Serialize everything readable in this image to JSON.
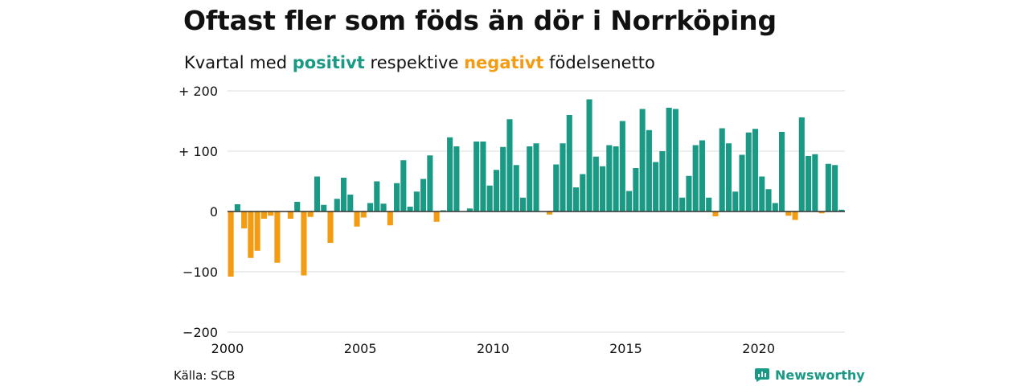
{
  "header": {
    "title": "Oftast fler som föds än dör i Norrköping",
    "subtitle_prefix": "Kvartal med",
    "subtitle_positive": "positivt",
    "subtitle_middle": "respektive",
    "subtitle_negative": "negativt",
    "subtitle_suffix": "födelsenetto"
  },
  "footer": {
    "source": "Källa: SCB",
    "brand": "Newsworthy"
  },
  "colors": {
    "positive": "#1a9985",
    "negative": "#f39c12",
    "grid": "#dddddd",
    "zero_line": "#333333"
  },
  "chart_data": {
    "type": "bar",
    "title": "Oftast fler som föds än dör i Norrköping",
    "subtitle": "Kvartal med positivt respektive negativt födelsenetto",
    "x_start": 2000.0,
    "x_step": 0.25,
    "xlim": [
      2000,
      2023.25
    ],
    "ylim": [
      -200,
      200
    ],
    "x_ticks": [
      2000,
      2005,
      2010,
      2015,
      2020
    ],
    "y_ticks": [
      200,
      100,
      0,
      -100,
      -200
    ],
    "y_tick_labels": [
      "+ 200",
      "+ 100",
      "0",
      "−100",
      "−200"
    ],
    "grid": true,
    "values": [
      -108,
      12,
      -28,
      -77,
      -65,
      -12,
      -7,
      -85,
      0,
      -12,
      16,
      -106,
      -9,
      58,
      11,
      -52,
      21,
      56,
      28,
      -25,
      -10,
      14,
      50,
      13,
      -23,
      47,
      85,
      8,
      33,
      54,
      93,
      -17,
      2,
      123,
      108,
      0,
      5,
      116,
      116,
      43,
      69,
      107,
      153,
      77,
      23,
      108,
      113,
      0,
      -5,
      78,
      113,
      160,
      40,
      62,
      186,
      91,
      75,
      110,
      108,
      150,
      34,
      72,
      170,
      135,
      82,
      100,
      172,
      170,
      23,
      59,
      110,
      118,
      23,
      -8,
      138,
      113,
      33,
      94,
      131,
      137,
      58,
      37,
      14,
      132,
      -7,
      -14,
      156,
      92,
      95,
      -3,
      79,
      77,
      3
    ]
  }
}
